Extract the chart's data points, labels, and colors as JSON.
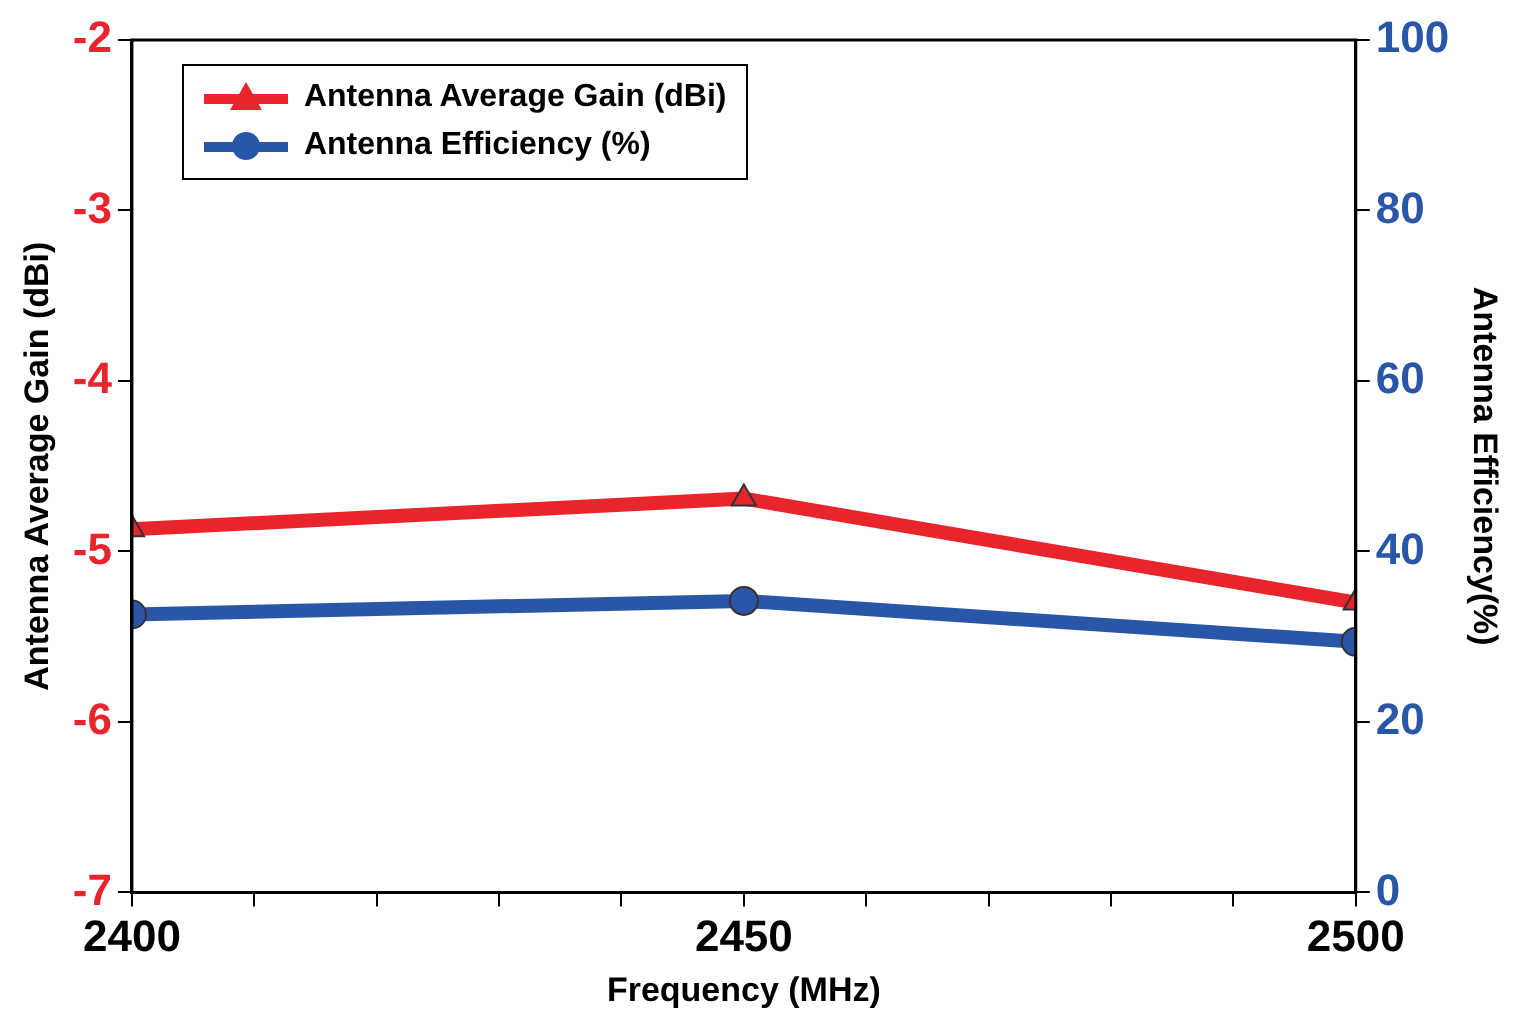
{
  "chart_data": {
    "type": "line",
    "xlabel": "Frequency (MHz)",
    "ylabel": "Antenna Average Gain (dBi)",
    "y2label": "Antenna Efficiency(%)",
    "x": [
      2400,
      2450,
      2500
    ],
    "series": [
      {
        "name": "Antenna Average Gain (dBi)",
        "color": "#e8252c",
        "marker": "triangle",
        "values": [
          -4.87,
          -4.69,
          -5.3
        ]
      },
      {
        "name": "Antenna Efficiency (%)",
        "color": "#2a56a8",
        "marker": "circle",
        "axis": "y2",
        "values": [
          32.6,
          34.2,
          29.4
        ]
      }
    ],
    "xlim": [
      2400,
      2500
    ],
    "xticks": [
      2400,
      {
        "value": 2410,
        "label": null
      },
      {
        "value": 2420,
        "label": null
      },
      {
        "value": 2430,
        "label": null
      },
      {
        "value": 2440,
        "label": null
      },
      2450,
      {
        "value": 2460,
        "label": null
      },
      {
        "value": 2470,
        "label": null
      },
      {
        "value": 2480,
        "label": null
      },
      {
        "value": 2490,
        "label": null
      },
      2500
    ],
    "ylim": [
      -7,
      -2
    ],
    "yticks": [
      -7,
      -6,
      -5,
      -4,
      -3,
      -2
    ],
    "y2lim": [
      0,
      100
    ],
    "y2ticks": [
      0,
      20,
      40,
      60,
      80,
      100
    ],
    "grid": false,
    "legend": "top left",
    "line_style": "solid"
  }
}
